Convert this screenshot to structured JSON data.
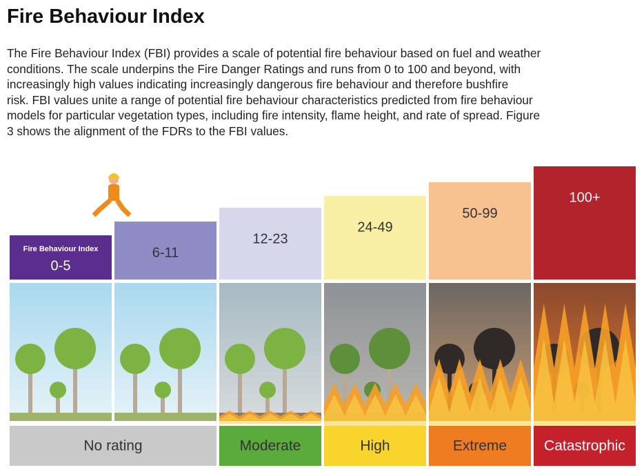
{
  "title": "Fire Behaviour Index",
  "description": [
    "The Fire Behaviour Index (FBI) provides a scale of potential fire behaviour based on fuel and weather",
    "conditions. The scale underpins the Fire Danger Ratings and runs from 0 to 100 and beyond, with",
    "increasingly high values indicating increasingly dangerous fire behaviour and therefore bushfire",
    "risk. FBI values unite a range of potential fire behaviour characteristics predicted from fire behaviour",
    "models for particular vegetation types, including fire intensity, flame height, and rate of spread. Figure",
    "3 shows the alignment of the FDRs to the FBI values."
  ],
  "index_label": "Fire Behaviour Index",
  "levels": [
    "0-5",
    "6-11",
    "12-23",
    "24-49",
    "50-99",
    "100+"
  ],
  "ratings": [
    "No rating",
    "Moderate",
    "High",
    "Extreme",
    "Catastrophic"
  ]
}
